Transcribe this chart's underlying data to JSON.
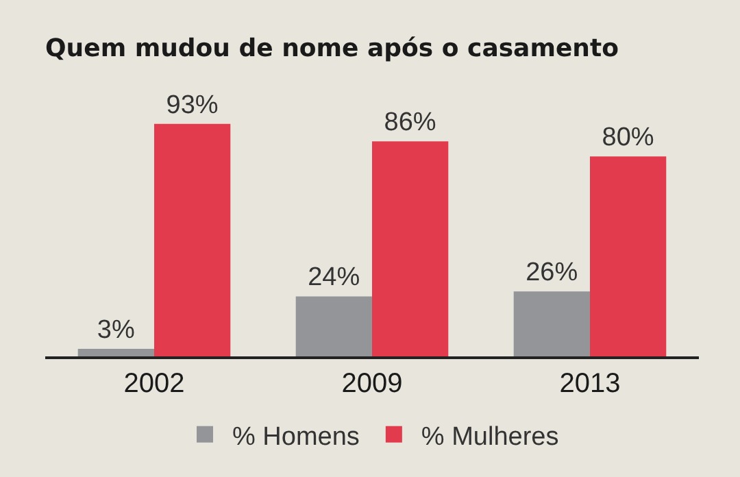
{
  "chart_data": {
    "type": "bar",
    "title": "Quem mudou de nome após o casamento",
    "categories": [
      "2002",
      "2009",
      "2013"
    ],
    "series": [
      {
        "name": "% Homens",
        "color": "#939598",
        "values": [
          3,
          24,
          26
        ],
        "value_labels": [
          "3%",
          "24%",
          "26%"
        ]
      },
      {
        "name": "% Mulheres",
        "color": "#e33b4e",
        "values": [
          93,
          86,
          80
        ],
        "value_labels": [
          "93%",
          "86%",
          "80%"
        ]
      }
    ],
    "legend": "bottom",
    "grid": false
  }
}
